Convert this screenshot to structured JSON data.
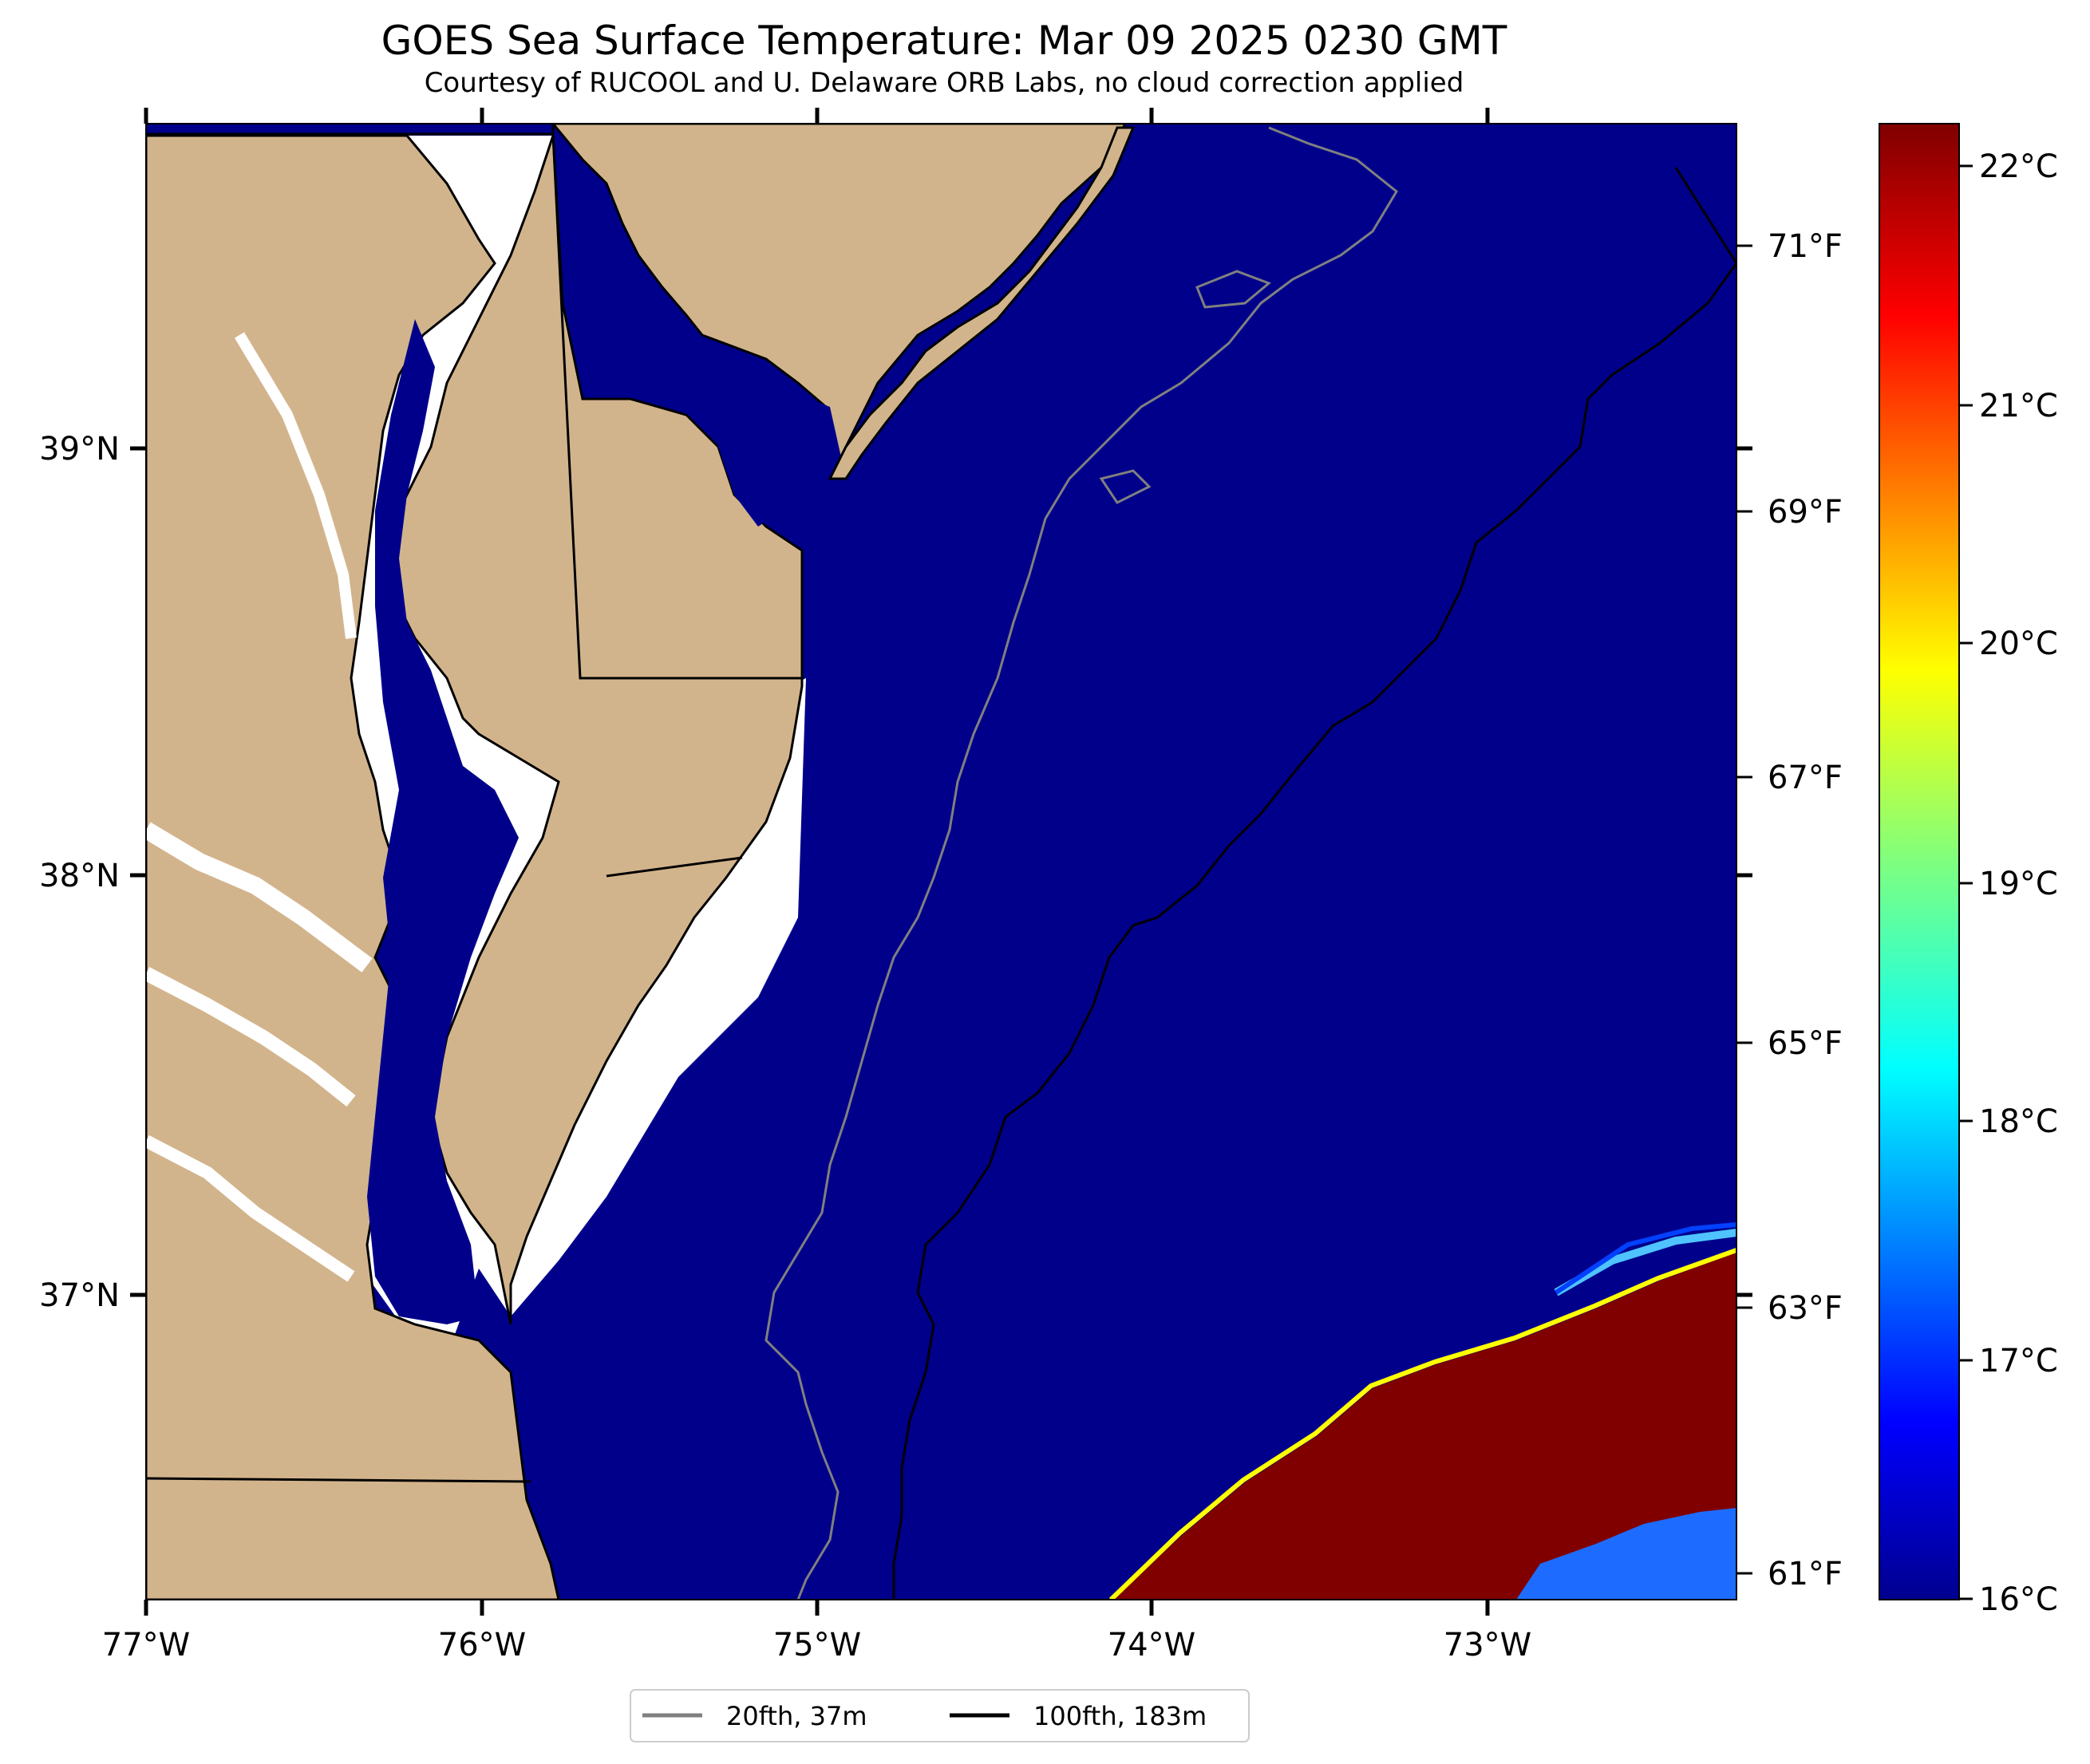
{
  "title": "GOES Sea Surface Temperature: Mar 09 2025 0230 GMT",
  "subtitle": "Courtesy of RUCOOL and U. Delaware ORB Labs, no cloud correction applied",
  "map": {
    "lon_range": [
      -77.0,
      -72.25
    ],
    "lat_range": [
      36.3,
      39.77
    ],
    "lon_labels": [
      "77°W",
      "76°W",
      "75°W",
      "74°W",
      "73°W"
    ],
    "lat_labels": [
      "39°N",
      "38°N",
      "37°N"
    ],
    "colors": {
      "land": "#d2b48c",
      "ocean_cold": "#00008b",
      "ocean_warm": "#800000",
      "coast": "#000000"
    }
  },
  "colorbar": {
    "celsius_labels": [
      "22°C",
      "21°C",
      "20°C",
      "19°C",
      "18°C",
      "17°C",
      "16°C"
    ],
    "fahrenheit_labels": [
      "71°F",
      "69°F",
      "67°F",
      "65°F",
      "63°F",
      "61°F"
    ],
    "range_c": [
      16,
      22.2
    ],
    "colormap": "jet"
  },
  "legend": {
    "items": [
      {
        "label": "20fth, 37m",
        "color": "#808080"
      },
      {
        "label": "100fth, 183m",
        "color": "#000000"
      }
    ]
  }
}
